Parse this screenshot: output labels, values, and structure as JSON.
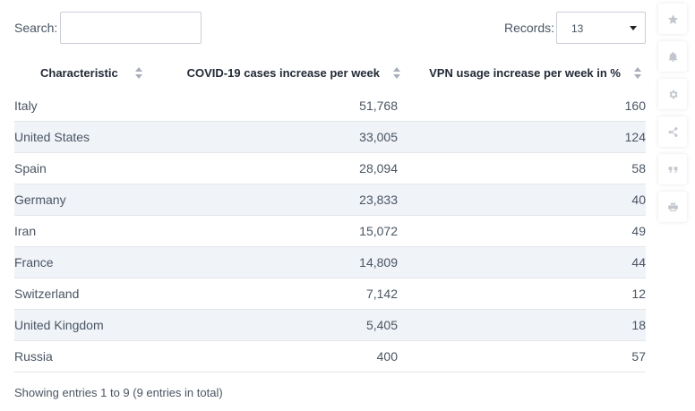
{
  "toolbar": {
    "search_label": "Search:",
    "search_value": "",
    "records_label": "Records:",
    "records_value": "13"
  },
  "table": {
    "headers": [
      "Characteristic",
      "COVID-19 cases increase per week",
      "VPN usage increase per week in %"
    ],
    "rows": [
      {
        "country": "Italy",
        "cases": "51,768",
        "vpn": "160"
      },
      {
        "country": "United States",
        "cases": "33,005",
        "vpn": "124"
      },
      {
        "country": "Spain",
        "cases": "28,094",
        "vpn": "58"
      },
      {
        "country": "Germany",
        "cases": "23,833",
        "vpn": "40"
      },
      {
        "country": "Iran",
        "cases": "15,072",
        "vpn": "49"
      },
      {
        "country": "France",
        "cases": "14,809",
        "vpn": "44"
      },
      {
        "country": "Switzerland",
        "cases": "7,142",
        "vpn": "12"
      },
      {
        "country": "United Kingdom",
        "cases": "5,405",
        "vpn": "18"
      },
      {
        "country": "Russia",
        "cases": "400",
        "vpn": "57"
      }
    ]
  },
  "footer": {
    "info": "Showing entries 1 to 9 (9 entries in total)"
  },
  "sidebar": {
    "icons": [
      "star-icon",
      "bell-icon",
      "gear-icon",
      "share-icon",
      "quote-icon",
      "print-icon"
    ]
  },
  "colors": {
    "stripe": "#f0f3f8",
    "text": "#4a5563",
    "icon": "#c2c7cf"
  }
}
